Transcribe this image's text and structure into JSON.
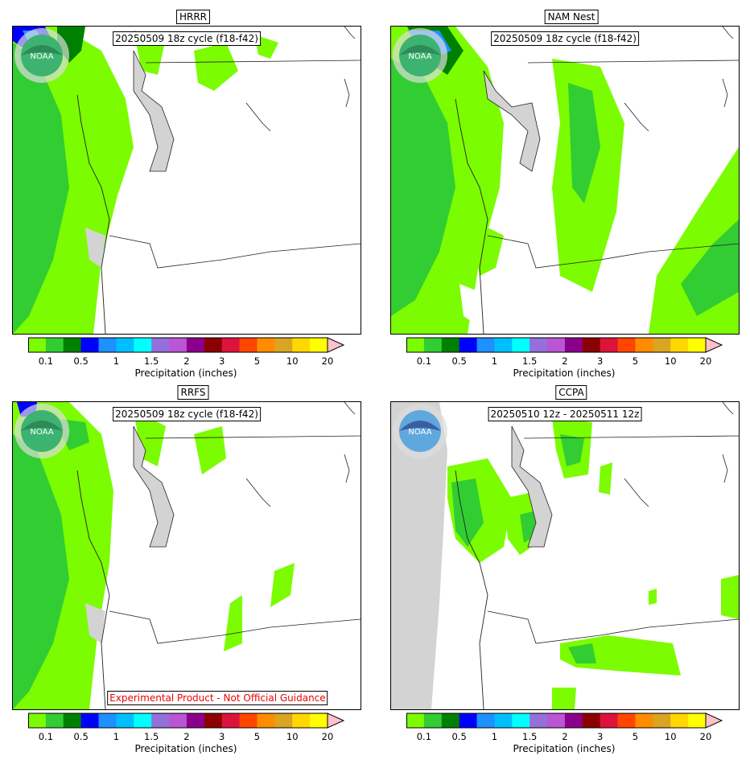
{
  "panels": [
    {
      "id": "hrrr",
      "title": "HRRR",
      "label": "20250509 18z cycle (f18-f42)",
      "warning": "",
      "logo": "noaa-green"
    },
    {
      "id": "nam",
      "title": "NAM Nest",
      "label": "20250509 18z cycle (f18-f42)",
      "warning": "",
      "logo": "noaa-green"
    },
    {
      "id": "rrfs",
      "title": "RRFS",
      "label": "20250509 18z cycle (f18-f42)",
      "warning": "Experimental Product - Not Official Guidance",
      "logo": "noaa-green"
    },
    {
      "id": "ccpa",
      "title": "CCPA",
      "label": "20250510 12z - 20250511 12z",
      "warning": "",
      "logo": "noaa-blue"
    }
  ],
  "colorbar": {
    "label": "Precipitation (inches)",
    "colors": [
      "#7cfc00",
      "#32cd32",
      "#008000",
      "#0000ff",
      "#1e90ff",
      "#00bfff",
      "#00ffff",
      "#9370db",
      "#ba55d3",
      "#8b008b",
      "#8b0000",
      "#dc143c",
      "#ff4500",
      "#ff8c00",
      "#daa520",
      "#ffd700",
      "#ffff00",
      "#ffc0cb"
    ],
    "ticks": [
      "0.1",
      "0.5",
      "1",
      "1.5",
      "2",
      "3",
      "5",
      "10",
      "20"
    ]
  }
}
